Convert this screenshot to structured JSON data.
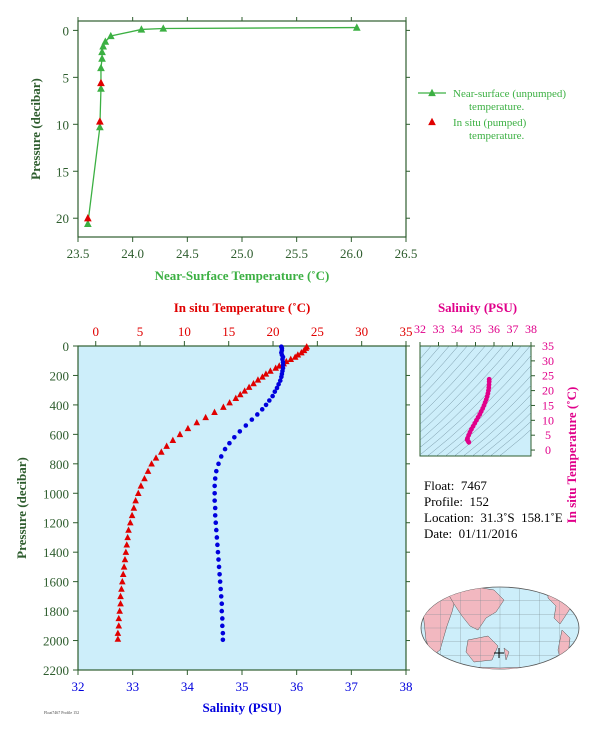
{
  "colors": {
    "axis": "#2e5d2e",
    "green_series": "#3cb043",
    "red_series": "#e00000",
    "blue_series": "#0000dd",
    "magenta_series": "#e0008a",
    "plot_bg": "#cdeefa",
    "land": "#f2b8c0",
    "ocean": "#cdeefa"
  },
  "chart_data": [
    {
      "id": "near-surface",
      "type": "line",
      "xlabel": "Near-Surface Temperature (˚C)",
      "ylabel": "Pressure (decibar)",
      "xlim": [
        23.5,
        26.5
      ],
      "ylim": [
        22,
        -1
      ],
      "xticks": [
        "23.5",
        "24.0",
        "24.5",
        "25.0",
        "25.5",
        "26.0",
        "26.5"
      ],
      "yticks": [
        "0",
        "5",
        "10",
        "15",
        "20"
      ],
      "series": [
        {
          "name": "Near-surface (unpumped)\ntemperature.",
          "legend_lines": [
            "Near-surface (unpumped)",
            "temperature."
          ],
          "marker": "triangle",
          "connected": true,
          "color": "#3cb043",
          "points": [
            [
              26.05,
              -0.3
            ],
            [
              24.28,
              -0.2
            ],
            [
              24.08,
              -0.1
            ],
            [
              23.8,
              0.6
            ],
            [
              23.75,
              1.2
            ],
            [
              23.73,
              1.7
            ],
            [
              23.72,
              2.3
            ],
            [
              23.72,
              3.0
            ],
            [
              23.71,
              4.0
            ],
            [
              23.71,
              6.2
            ],
            [
              23.7,
              10.3
            ],
            [
              23.59,
              20.6
            ]
          ]
        },
        {
          "name": "In situ (pumped)\ntemperature.",
          "legend_lines": [
            "In situ (pumped)",
            "temperature."
          ],
          "marker": "triangle",
          "connected": false,
          "color": "#e00000",
          "points": [
            [
              23.71,
              5.6
            ],
            [
              23.7,
              9.7
            ],
            [
              23.59,
              20.0
            ]
          ]
        }
      ]
    },
    {
      "id": "profile",
      "type": "scatter",
      "top_xlabel": "In situ Temperature (˚C)",
      "bottom_xlabel": "Salinity (PSU)",
      "ylabel": "Pressure (decibar)",
      "top_xlim": [
        -2,
        35
      ],
      "top_xticks": [
        "0",
        "5",
        "10",
        "15",
        "20",
        "25",
        "30",
        "35"
      ],
      "bottom_xlim": [
        32,
        38
      ],
      "bottom_xticks": [
        "32",
        "33",
        "34",
        "35",
        "36",
        "37",
        "38"
      ],
      "ylim": [
        2200,
        0
      ],
      "yticks": [
        "0",
        "200",
        "400",
        "600",
        "800",
        "1000",
        "1200",
        "1400",
        "1600",
        "1800",
        "2000",
        "2200"
      ],
      "temperature": {
        "marker": "triangle",
        "color": "#e00000",
        "points": [
          [
            23.8,
            5
          ],
          [
            23.7,
            15
          ],
          [
            23.5,
            30
          ],
          [
            23.2,
            45
          ],
          [
            22.8,
            60
          ],
          [
            22.5,
            75
          ],
          [
            22.0,
            90
          ],
          [
            21.5,
            105
          ],
          [
            21.2,
            120
          ],
          [
            20.7,
            135
          ],
          [
            20.3,
            150
          ],
          [
            19.7,
            170
          ],
          [
            19.2,
            190
          ],
          [
            18.8,
            210
          ],
          [
            18.3,
            230
          ],
          [
            17.8,
            255
          ],
          [
            17.3,
            280
          ],
          [
            16.8,
            305
          ],
          [
            16.3,
            330
          ],
          [
            15.8,
            355
          ],
          [
            15.1,
            385
          ],
          [
            14.4,
            415
          ],
          [
            13.4,
            450
          ],
          [
            12.4,
            485
          ],
          [
            11.4,
            520
          ],
          [
            10.4,
            560
          ],
          [
            9.5,
            600
          ],
          [
            8.7,
            640
          ],
          [
            8.0,
            680
          ],
          [
            7.4,
            720
          ],
          [
            6.8,
            760
          ],
          [
            6.3,
            800
          ],
          [
            5.9,
            850
          ],
          [
            5.5,
            900
          ],
          [
            5.1,
            950
          ],
          [
            4.8,
            1000
          ],
          [
            4.5,
            1050
          ],
          [
            4.3,
            1100
          ],
          [
            4.1,
            1150
          ],
          [
            3.9,
            1200
          ],
          [
            3.7,
            1250
          ],
          [
            3.6,
            1300
          ],
          [
            3.5,
            1350
          ],
          [
            3.4,
            1400
          ],
          [
            3.3,
            1450
          ],
          [
            3.2,
            1500
          ],
          [
            3.1,
            1550
          ],
          [
            3.0,
            1600
          ],
          [
            2.9,
            1650
          ],
          [
            2.8,
            1700
          ],
          [
            2.8,
            1750
          ],
          [
            2.7,
            1800
          ],
          [
            2.6,
            1850
          ],
          [
            2.6,
            1900
          ],
          [
            2.5,
            1950
          ],
          [
            2.5,
            1990
          ]
        ]
      },
      "salinity": {
        "marker": "dot",
        "color": "#0000dd",
        "points": [
          [
            35.72,
            5
          ],
          [
            35.73,
            15
          ],
          [
            35.73,
            30
          ],
          [
            35.72,
            45
          ],
          [
            35.73,
            60
          ],
          [
            35.75,
            75
          ],
          [
            35.74,
            90
          ],
          [
            35.75,
            110
          ],
          [
            35.75,
            130
          ],
          [
            35.75,
            150
          ],
          [
            35.74,
            170
          ],
          [
            35.73,
            190
          ],
          [
            35.72,
            210
          ],
          [
            35.7,
            235
          ],
          [
            35.67,
            260
          ],
          [
            35.64,
            285
          ],
          [
            35.6,
            310
          ],
          [
            35.56,
            340
          ],
          [
            35.5,
            370
          ],
          [
            35.44,
            400
          ],
          [
            35.37,
            430
          ],
          [
            35.28,
            465
          ],
          [
            35.18,
            500
          ],
          [
            35.07,
            540
          ],
          [
            34.96,
            580
          ],
          [
            34.86,
            620
          ],
          [
            34.77,
            660
          ],
          [
            34.69,
            700
          ],
          [
            34.62,
            750
          ],
          [
            34.57,
            800
          ],
          [
            34.53,
            850
          ],
          [
            34.51,
            900
          ],
          [
            34.5,
            950
          ],
          [
            34.5,
            1000
          ],
          [
            34.5,
            1050
          ],
          [
            34.51,
            1100
          ],
          [
            34.51,
            1150
          ],
          [
            34.52,
            1200
          ],
          [
            34.53,
            1250
          ],
          [
            34.54,
            1300
          ],
          [
            34.55,
            1350
          ],
          [
            34.56,
            1400
          ],
          [
            34.57,
            1450
          ],
          [
            34.58,
            1500
          ],
          [
            34.59,
            1550
          ],
          [
            34.6,
            1600
          ],
          [
            34.61,
            1650
          ],
          [
            34.62,
            1700
          ],
          [
            34.63,
            1750
          ],
          [
            34.63,
            1800
          ],
          [
            34.64,
            1850
          ],
          [
            34.64,
            1900
          ],
          [
            34.65,
            1950
          ],
          [
            34.65,
            1995
          ]
        ]
      }
    },
    {
      "id": "ts-diagram",
      "type": "scatter",
      "xlabel": "Salinity (PSU)",
      "ylabel": "In situ Temperature (˚C)",
      "xlim": [
        32,
        38
      ],
      "xticks": [
        "32",
        "33",
        "34",
        "35",
        "36",
        "37",
        "38"
      ],
      "ylim": [
        -2,
        35
      ],
      "yticks": [
        "0",
        "5",
        "10",
        "15",
        "20",
        "25",
        "30",
        "35"
      ],
      "marker": "dot",
      "color": "#e0008a",
      "points": [
        [
          35.74,
          23.8
        ],
        [
          35.74,
          23.0
        ],
        [
          35.73,
          22.0
        ],
        [
          35.72,
          21.0
        ],
        [
          35.7,
          20.0
        ],
        [
          35.67,
          19.0
        ],
        [
          35.63,
          18.0
        ],
        [
          35.58,
          17.0
        ],
        [
          35.52,
          16.0
        ],
        [
          35.46,
          15.0
        ],
        [
          35.39,
          14.0
        ],
        [
          35.31,
          13.0
        ],
        [
          35.23,
          12.0
        ],
        [
          35.14,
          11.0
        ],
        [
          35.05,
          10.0
        ],
        [
          34.96,
          9.0
        ],
        [
          34.87,
          8.0
        ],
        [
          34.78,
          7.0
        ],
        [
          34.7,
          6.0
        ],
        [
          34.63,
          5.0
        ],
        [
          34.57,
          4.0
        ],
        [
          34.55,
          3.5
        ],
        [
          34.6,
          3.0
        ],
        [
          34.64,
          2.6
        ]
      ]
    }
  ],
  "float_info": {
    "float": "Float:  7467",
    "profile": "Profile:  152",
    "location": "Location:  31.3˚S  158.1˚E",
    "date": "Date:  01/11/2016"
  },
  "footer_stamp": "Float7467 Profile 152"
}
